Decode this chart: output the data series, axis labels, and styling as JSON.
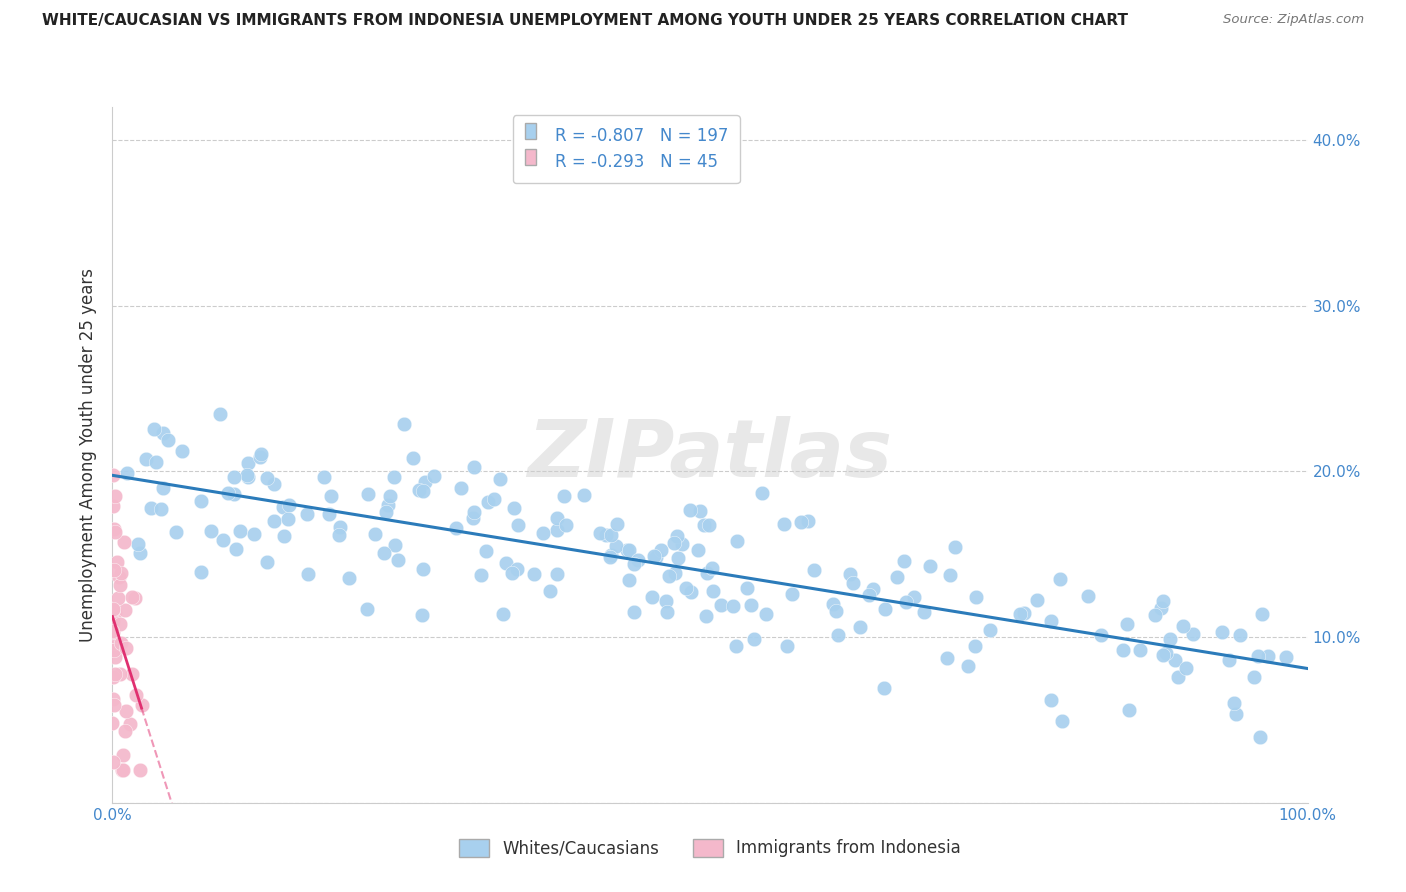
{
  "title": "WHITE/CAUCASIAN VS IMMIGRANTS FROM INDONESIA UNEMPLOYMENT AMONG YOUTH UNDER 25 YEARS CORRELATION CHART",
  "source": "Source: ZipAtlas.com",
  "ylabel": "Unemployment Among Youth under 25 years",
  "xlim": [
    0,
    1.0
  ],
  "ylim": [
    0.0,
    0.42
  ],
  "xtick_vals": [
    0.0,
    0.1,
    0.2,
    0.3,
    0.4,
    0.5,
    0.6,
    0.7,
    0.8,
    0.9,
    1.0
  ],
  "xticklabels": [
    "0.0%",
    "",
    "",
    "",
    "",
    "",
    "",
    "",
    "",
    "",
    "100.0%"
  ],
  "ytick_vals": [
    0.0,
    0.1,
    0.2,
    0.3,
    0.4
  ],
  "yticklabels_right": [
    "",
    "10.0%",
    "20.0%",
    "30.0%",
    "40.0%"
  ],
  "blue_scatter_color": "#a8d0ee",
  "pink_scatter_color": "#f4b8cb",
  "blue_line_color": "#2b7bba",
  "pink_line_color": "#e03070",
  "blue_R": "-0.807",
  "blue_N": "197",
  "pink_R": "-0.293",
  "pink_N": "45",
  "legend1_label": "Whites/Caucasians",
  "legend2_label": "Immigrants from Indonesia",
  "watermark": "ZIPatlas",
  "grid_color": "#cccccc",
  "background": "#ffffff",
  "title_color": "#222222",
  "source_color": "#777777",
  "label_color": "#4488cc",
  "blue_seed": 12,
  "pink_seed": 55
}
